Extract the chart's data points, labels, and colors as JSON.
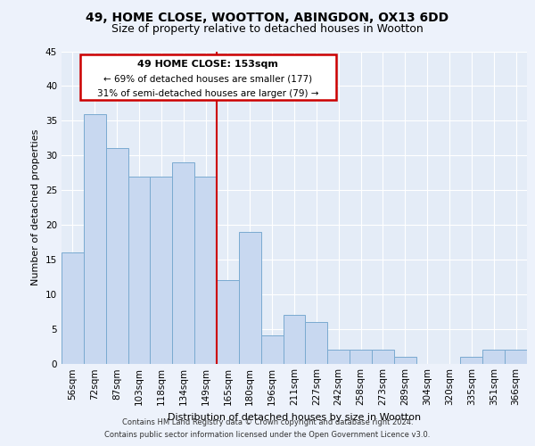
{
  "title1": "49, HOME CLOSE, WOOTTON, ABINGDON, OX13 6DD",
  "title2": "Size of property relative to detached houses in Wootton",
  "xlabel": "Distribution of detached houses by size in Wootton",
  "ylabel": "Number of detached properties",
  "categories": [
    "56sqm",
    "72sqm",
    "87sqm",
    "103sqm",
    "118sqm",
    "134sqm",
    "149sqm",
    "165sqm",
    "180sqm",
    "196sqm",
    "211sqm",
    "227sqm",
    "242sqm",
    "258sqm",
    "273sqm",
    "289sqm",
    "304sqm",
    "320sqm",
    "335sqm",
    "351sqm",
    "366sqm"
  ],
  "values": [
    16,
    36,
    31,
    27,
    27,
    29,
    27,
    12,
    19,
    4,
    7,
    6,
    2,
    2,
    2,
    1,
    0,
    0,
    1,
    2,
    2
  ],
  "bar_color": "#c8d8f0",
  "bar_edge_color": "#7aaad0",
  "red_line_x": 6.5,
  "ylim": [
    0,
    45
  ],
  "yticks": [
    0,
    5,
    10,
    15,
    20,
    25,
    30,
    35,
    40,
    45
  ],
  "annotation_box_text": [
    "49 HOME CLOSE: 153sqm",
    "← 69% of detached houses are smaller (177)",
    "31% of semi-detached houses are larger (79) →"
  ],
  "footer_lines": [
    "Contains HM Land Registry data © Crown copyright and database right 2024.",
    "Contains public sector information licensed under the Open Government Licence v3.0."
  ],
  "background_color": "#edf2fb",
  "plot_bg_color": "#e4ecf7",
  "grid_color": "#ffffff",
  "annotation_box_color": "#ffffff",
  "annotation_box_edge_color": "#cc0000",
  "red_line_color": "#cc0000",
  "title1_fontsize": 10,
  "title2_fontsize": 9,
  "xlabel_fontsize": 8,
  "ylabel_fontsize": 8,
  "tick_fontsize": 7.5,
  "footer_fontsize": 6,
  "ann_fontsize": 8
}
